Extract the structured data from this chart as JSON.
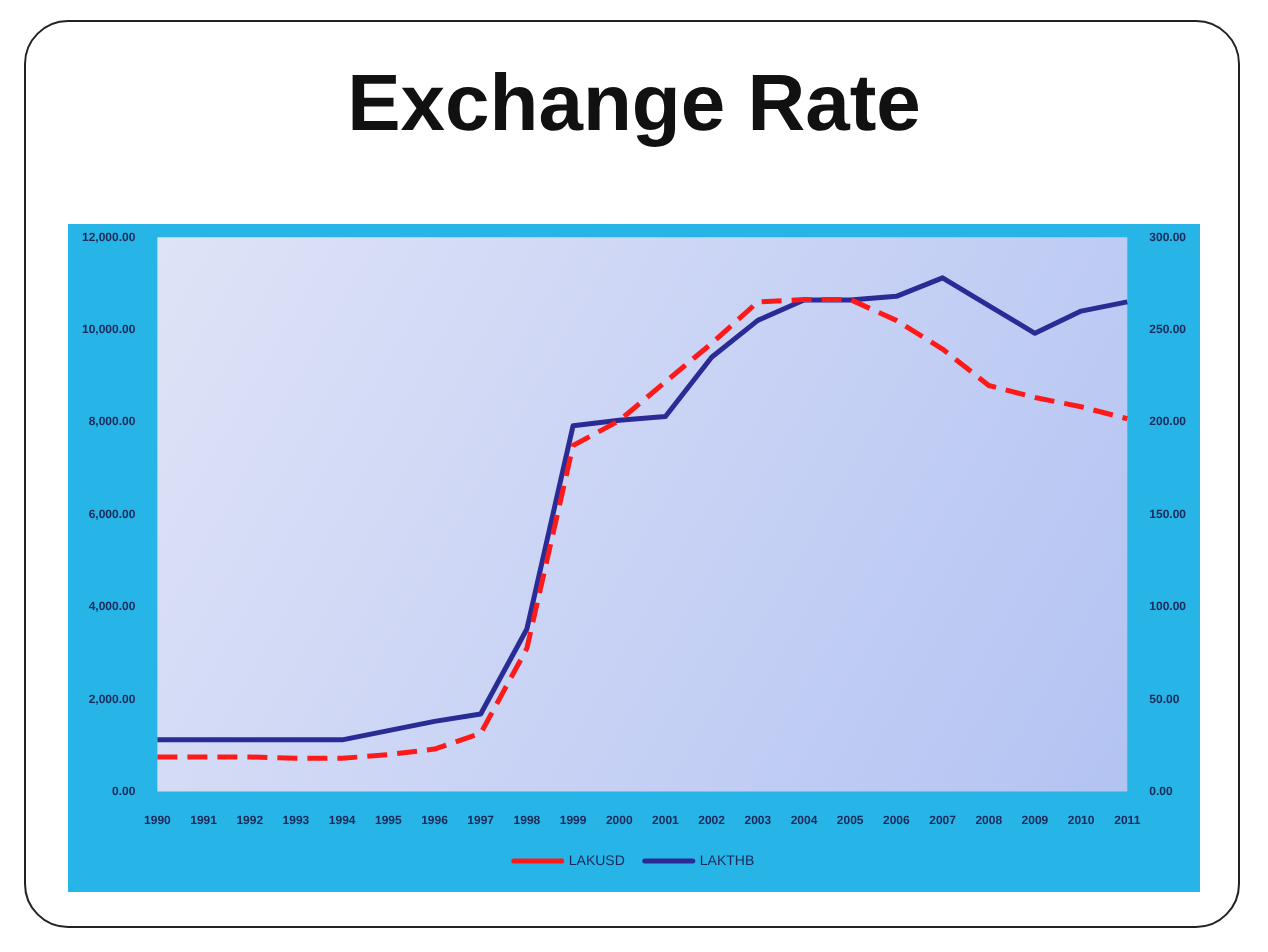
{
  "chart_data": {
    "type": "line",
    "title": "Exchange Rate",
    "categories": [
      "1990",
      "1991",
      "1992",
      "1993",
      "1994",
      "1995",
      "1996",
      "1997",
      "1998",
      "1999",
      "2000",
      "2001",
      "2002",
      "2003",
      "2004",
      "2005",
      "2006",
      "2007",
      "2008",
      "2009",
      "2010",
      "2011"
    ],
    "series": [
      {
        "name": "LAKUSD",
        "color": "#ff1a1a",
        "line_style": "dashed",
        "values": [
          750,
          750,
          750,
          720,
          720,
          800,
          920,
          1260,
          3100,
          7490,
          8030,
          8870,
          9700,
          10600,
          10650,
          10650,
          10200,
          9580,
          8790,
          8530,
          8330,
          8070
        ]
      },
      {
        "name": "LAKTHB",
        "color": "#2b2b96",
        "line_style": "solid",
        "axis": "y2",
        "values": [
          28,
          28,
          28,
          28,
          28,
          33,
          38,
          42,
          88,
          198,
          201,
          203,
          235,
          255,
          266,
          266,
          268,
          278,
          263,
          248,
          260,
          265
        ]
      }
    ],
    "ylim": [
      0,
      12000
    ],
    "yticks": [
      {
        "value": 0,
        "label": "0.00"
      },
      {
        "value": 2000,
        "label": "2,000.00"
      },
      {
        "value": 4000,
        "label": "4,000.00"
      },
      {
        "value": 6000,
        "label": "6,000.00"
      },
      {
        "value": 8000,
        "label": "8,000.00"
      },
      {
        "value": 10000,
        "label": "10,000.00"
      },
      {
        "value": 12000,
        "label": "12,000.00"
      }
    ],
    "y2lim": [
      0,
      300
    ],
    "y2ticks": [
      {
        "value": 0,
        "label": "0.00"
      },
      {
        "value": 50,
        "label": "50.00"
      },
      {
        "value": 100,
        "label": "100.00"
      },
      {
        "value": 150,
        "label": "150.00"
      },
      {
        "value": 200,
        "label": "200.00"
      },
      {
        "value": 250,
        "label": "250.00"
      },
      {
        "value": 300,
        "label": "300.00"
      }
    ],
    "grid": false,
    "legend": "bottom",
    "marker": "none"
  }
}
